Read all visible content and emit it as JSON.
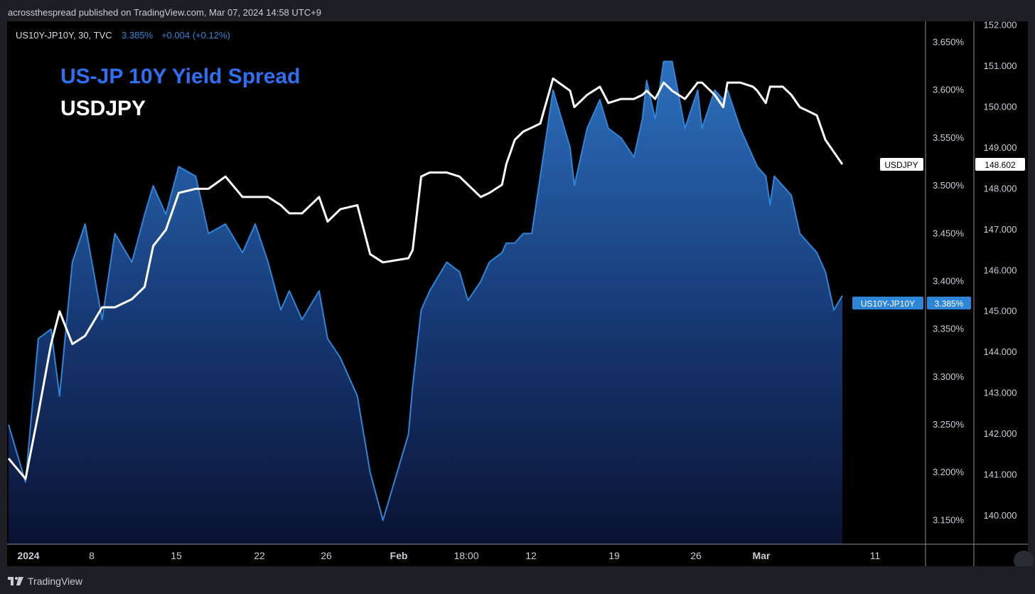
{
  "header": {
    "publish_line": "acrossthespread published on TradingView.com, Mar 07, 2024 14:58 UTC+9"
  },
  "legend": {
    "symbol": "US10Y-JP10Y, 30, TVC",
    "price": "3.385%",
    "change": "+0.004 (+0.12%)"
  },
  "overlay": {
    "title_spread": "US-JP 10Y Yield Spread",
    "title_usdjpy": "USDJPY"
  },
  "markers": {
    "usdjpy_label": "USDJPY",
    "usdjpy_value": "148.602",
    "spread_label": "US10Y-JP10Y",
    "spread_value": "3.385%"
  },
  "footer": {
    "brand": "TradingView"
  },
  "colors": {
    "spread": "#2e86d9",
    "usdjpy": "#ffffff",
    "title_spread": "#2f6ff2",
    "background": "#000000"
  },
  "chart_data": {
    "type": "area",
    "x_tick_labels": [
      "2024",
      "8",
      "15",
      "22",
      "26",
      "Feb",
      "18:00",
      "12",
      "19",
      "26",
      "Mar",
      "11"
    ],
    "x_ticks_bold": [
      "2024",
      "Feb",
      "Mar"
    ],
    "left_axis": {
      "unit": "%",
      "ticks": [
        "3.650%",
        "3.600%",
        "3.550%",
        "3.500%",
        "3.450%",
        "3.400%",
        "3.350%",
        "3.300%",
        "3.250%",
        "3.200%",
        "3.150%"
      ],
      "ylim": [
        3.125,
        3.672
      ]
    },
    "right_axis": {
      "ticks": [
        "152.000",
        "151.000",
        "150.000",
        "149.000",
        "148.000",
        "147.000",
        "146.000",
        "145.000",
        "144.000",
        "143.000",
        "142.000",
        "141.000",
        "140.000"
      ],
      "ylim": [
        139.3,
        152.1
      ]
    },
    "series": [
      {
        "name": "US10Y-JP10Y",
        "axis": "left",
        "style": "area",
        "x": [
          0,
          4,
          7,
          10,
          12,
          15,
          18,
          22,
          25,
          29,
          32,
          34,
          37,
          40,
          44,
          47,
          51,
          55,
          58,
          61,
          64,
          66,
          69,
          73,
          75,
          78,
          82,
          85,
          88,
          94,
          95,
          97,
          99,
          103,
          106,
          108,
          111,
          113,
          116,
          117,
          119,
          121,
          123,
          125,
          128,
          132,
          133,
          136,
          139,
          141,
          144,
          147,
          149,
          150,
          152,
          154,
          156,
          159,
          162,
          163,
          166,
          168,
          169,
          172,
          175,
          176,
          178,
          179,
          180,
          182,
          184,
          186,
          188,
          190,
          192,
          194,
          196
        ],
        "values": [
          3.25,
          3.19,
          3.34,
          3.35,
          3.28,
          3.42,
          3.46,
          3.36,
          3.45,
          3.42,
          3.47,
          3.5,
          3.47,
          3.52,
          3.51,
          3.45,
          3.46,
          3.43,
          3.46,
          3.42,
          3.37,
          3.39,
          3.36,
          3.39,
          3.34,
          3.32,
          3.28,
          3.2,
          3.15,
          3.24,
          3.29,
          3.37,
          3.39,
          3.42,
          3.41,
          3.38,
          3.4,
          3.42,
          3.43,
          3.44,
          3.44,
          3.45,
          3.45,
          3.51,
          3.6,
          3.54,
          3.5,
          3.56,
          3.59,
          3.56,
          3.55,
          3.53,
          3.57,
          3.61,
          3.57,
          3.63,
          3.63,
          3.56,
          3.6,
          3.56,
          3.6,
          3.59,
          3.6,
          3.56,
          3.53,
          3.52,
          3.51,
          3.48,
          3.51,
          3.5,
          3.49,
          3.45,
          3.44,
          3.43,
          3.41,
          3.37,
          3.385
        ]
      },
      {
        "name": "USDJPY",
        "axis": "right",
        "style": "line",
        "x": [
          0,
          4,
          7,
          10,
          12,
          15,
          18,
          22,
          25,
          29,
          32,
          34,
          37,
          40,
          44,
          47,
          51,
          55,
          58,
          61,
          64,
          66,
          69,
          73,
          75,
          78,
          82,
          85,
          88,
          94,
          95,
          97,
          99,
          103,
          106,
          108,
          111,
          113,
          116,
          117,
          119,
          121,
          123,
          125,
          128,
          132,
          133,
          136,
          139,
          141,
          144,
          147,
          149,
          150,
          152,
          154,
          156,
          159,
          162,
          163,
          166,
          168,
          169,
          172,
          175,
          176,
          178,
          179,
          180,
          182,
          184,
          186,
          188,
          190,
          192,
          194,
          196
        ],
        "values": [
          141.4,
          140.9,
          142.5,
          144.2,
          145.0,
          144.2,
          144.4,
          145.1,
          145.1,
          145.3,
          145.6,
          146.6,
          147.0,
          147.9,
          148.0,
          148.0,
          148.3,
          147.8,
          147.8,
          147.8,
          147.6,
          147.4,
          147.4,
          147.8,
          147.2,
          147.5,
          147.6,
          146.4,
          146.2,
          146.3,
          146.5,
          148.3,
          148.4,
          148.4,
          148.3,
          148.1,
          147.8,
          147.9,
          148.1,
          148.6,
          149.2,
          149.4,
          149.5,
          149.6,
          150.7,
          150.4,
          150.0,
          150.3,
          150.5,
          150.1,
          150.2,
          150.2,
          150.3,
          150.4,
          150.2,
          150.6,
          150.4,
          150.2,
          150.6,
          150.6,
          150.3,
          150.0,
          150.6,
          150.6,
          150.5,
          150.4,
          150.1,
          150.5,
          150.5,
          150.5,
          150.3,
          150.0,
          149.9,
          149.8,
          149.2,
          148.9,
          148.6
        ]
      }
    ],
    "grid": false,
    "legend": "top-left"
  }
}
